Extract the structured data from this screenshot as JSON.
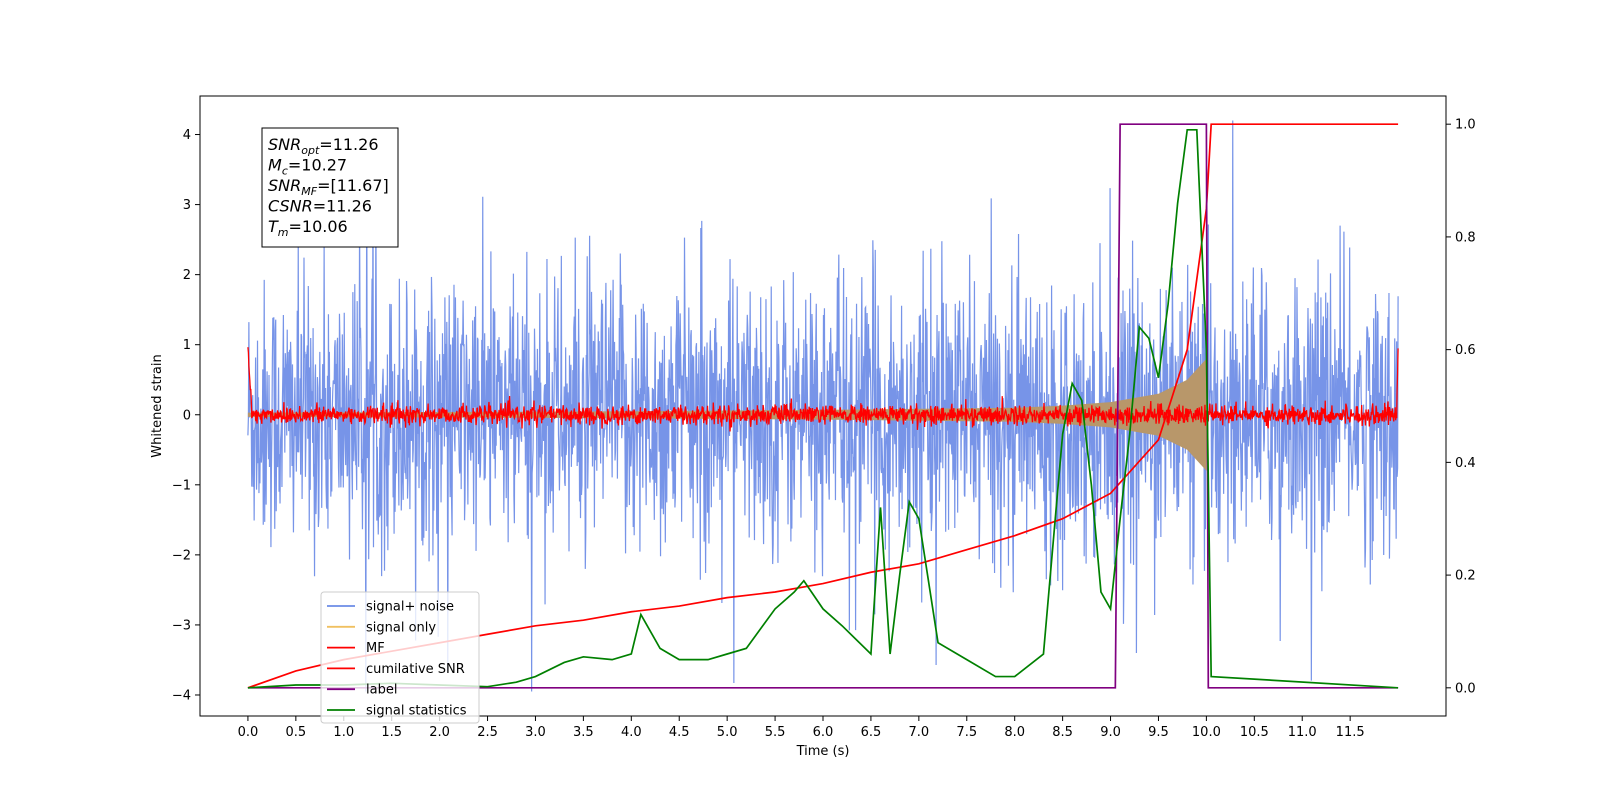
{
  "chart_data": {
    "type": "line",
    "xlabel": "Time (s)",
    "ylabel": "Whitened strain",
    "xlim": [
      -0.5,
      12.5
    ],
    "ylim": [
      -4.3,
      4.55
    ],
    "y2lim": [
      -0.05,
      1.05
    ],
    "xticks": [
      "0.0",
      "0.5",
      "1.0",
      "1.5",
      "2.0",
      "2.5",
      "3.0",
      "3.5",
      "4.0",
      "4.5",
      "5.0",
      "5.5",
      "6.0",
      "6.5",
      "7.0",
      "7.5",
      "8.0",
      "8.5",
      "9.0",
      "9.5",
      "10.0",
      "10.5",
      "11.0",
      "11.5"
    ],
    "yticks": [
      "−4",
      "−3",
      "−2",
      "−1",
      "0",
      "1",
      "2",
      "3",
      "4"
    ],
    "y2ticks": [
      "0.0",
      "0.2",
      "0.4",
      "0.6",
      "0.8",
      "1.0"
    ],
    "annotations": [
      {
        "base": "SNR",
        "sub": "opt",
        "rest": "=11.26"
      },
      {
        "base": "M",
        "sub": "c",
        "rest": "=10.27"
      },
      {
        "base": "SNR",
        "sub": "MF",
        "rest": "=[11.67]"
      },
      {
        "base": "CSNR",
        "sub": "",
        "rest": "=11.26"
      },
      {
        "base": "T",
        "sub": "m",
        "rest": "=10.06"
      }
    ],
    "legend": {
      "placement": "lower-left",
      "entries": [
        "signal+ noise",
        "signal only",
        "MF",
        "cumilative SNR",
        "label",
        "signal statistics"
      ]
    },
    "series": [
      {
        "name": "signal+ noise",
        "axis": "left",
        "color": "#6b8be6",
        "noise_band": [
          -2.0,
          2.0
        ],
        "x_range": [
          0.0,
          12.0
        ]
      },
      {
        "name": "signal only",
        "axis": "left",
        "color": "#f0c060",
        "fill_color": "#b8976a",
        "envelope_x": [
          0.0,
          2.0,
          4.0,
          6.0,
          8.0,
          8.5,
          9.0,
          9.5,
          9.8,
          10.0,
          10.02
        ],
        "envelope_amp": [
          0.03,
          0.04,
          0.05,
          0.07,
          0.1,
          0.13,
          0.18,
          0.3,
          0.5,
          0.8,
          0.0
        ]
      },
      {
        "name": "MF",
        "axis": "left",
        "color": "#ff0000",
        "noise_band": [
          -0.2,
          0.2
        ],
        "x_range": [
          0.0,
          12.0
        ]
      },
      {
        "name": "cumilative SNR",
        "axis": "right",
        "color": "#ff0000",
        "x": [
          0.0,
          0.5,
          1.0,
          1.5,
          2.0,
          2.5,
          3.0,
          3.5,
          4.0,
          4.5,
          5.0,
          5.5,
          6.0,
          6.5,
          7.0,
          7.5,
          8.0,
          8.5,
          9.0,
          9.5,
          9.8,
          10.0,
          10.05,
          12.0
        ],
        "y": [
          0.0,
          0.03,
          0.05,
          0.065,
          0.08,
          0.095,
          0.11,
          0.12,
          0.135,
          0.145,
          0.16,
          0.17,
          0.185,
          0.205,
          0.22,
          0.245,
          0.27,
          0.3,
          0.345,
          0.44,
          0.6,
          0.85,
          1.0,
          1.0
        ]
      },
      {
        "name": "label",
        "axis": "right",
        "color": "#800080",
        "x": [
          0.0,
          9.05,
          9.1,
          10.0,
          10.02,
          12.0
        ],
        "y": [
          0.0,
          0.0,
          1.0,
          1.0,
          0.0,
          0.0
        ]
      },
      {
        "name": "signal statistics",
        "axis": "right",
        "color": "#008000",
        "x": [
          0.0,
          0.5,
          1.0,
          1.5,
          2.0,
          2.5,
          2.8,
          3.0,
          3.3,
          3.5,
          3.8,
          4.0,
          4.1,
          4.3,
          4.5,
          4.8,
          5.0,
          5.2,
          5.5,
          5.7,
          5.8,
          6.0,
          6.2,
          6.5,
          6.6,
          6.7,
          6.8,
          6.9,
          7.0,
          7.2,
          7.5,
          7.8,
          8.0,
          8.3,
          8.5,
          8.6,
          8.7,
          8.8,
          8.9,
          9.0,
          9.1,
          9.2,
          9.3,
          9.4,
          9.5,
          9.6,
          9.7,
          9.8,
          9.9,
          10.0,
          10.05,
          12.0
        ],
        "y": [
          0.0,
          0.005,
          0.005,
          0.008,
          0.005,
          0.002,
          0.01,
          0.02,
          0.045,
          0.055,
          0.05,
          0.06,
          0.13,
          0.07,
          0.05,
          0.05,
          0.06,
          0.07,
          0.14,
          0.17,
          0.19,
          0.14,
          0.11,
          0.06,
          0.32,
          0.06,
          0.2,
          0.33,
          0.3,
          0.08,
          0.05,
          0.02,
          0.02,
          0.06,
          0.45,
          0.54,
          0.51,
          0.36,
          0.17,
          0.14,
          0.3,
          0.45,
          0.64,
          0.62,
          0.55,
          0.68,
          0.86,
          0.99,
          0.99,
          0.6,
          0.02,
          0.0
        ]
      }
    ]
  }
}
